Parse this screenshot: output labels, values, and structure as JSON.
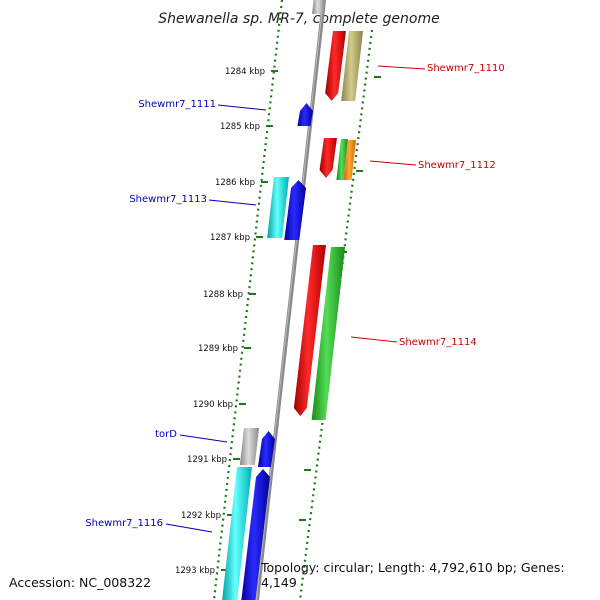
{
  "title": "Shewanella sp. MR-7, complete genome",
  "footer": {
    "accession": "Accession: NC_008322",
    "topology": "Topology: circular; Length: 4,792,610 bp; Genes: 4,149"
  },
  "colors": {
    "forward_label": "#0000bb",
    "reverse_label": "#cc0000",
    "tick": "#1a7a1a",
    "backbone": "#888888"
  },
  "ticks": [
    {
      "kbp": 1284,
      "label": "1284 kbp"
    },
    {
      "kbp": 1285,
      "label": "1285 kbp"
    },
    {
      "kbp": 1286,
      "label": "1286 kbp"
    },
    {
      "kbp": 1287,
      "label": "1287 kbp"
    },
    {
      "kbp": 1288,
      "label": "1288 kbp"
    },
    {
      "kbp": 1289,
      "label": "1289 kbp"
    },
    {
      "kbp": 1290,
      "label": "1290 kbp"
    },
    {
      "kbp": 1291,
      "label": "1291 kbp"
    },
    {
      "kbp": 1292,
      "label": "1292 kbp"
    },
    {
      "kbp": 1293,
      "label": "1293 kbp"
    }
  ],
  "gene_labels": [
    {
      "name": "Shewmr7_1110",
      "strand": "reverse"
    },
    {
      "name": "Shewmr7_1111",
      "strand": "forward"
    },
    {
      "name": "Shewmr7_1112",
      "strand": "reverse"
    },
    {
      "name": "Shewmr7_1113",
      "strand": "forward"
    },
    {
      "name": "Shewmr7_1114",
      "strand": "reverse"
    },
    {
      "name": "torD",
      "strand": "forward"
    },
    {
      "name": "Shewmr7_1116",
      "strand": "forward"
    }
  ]
}
